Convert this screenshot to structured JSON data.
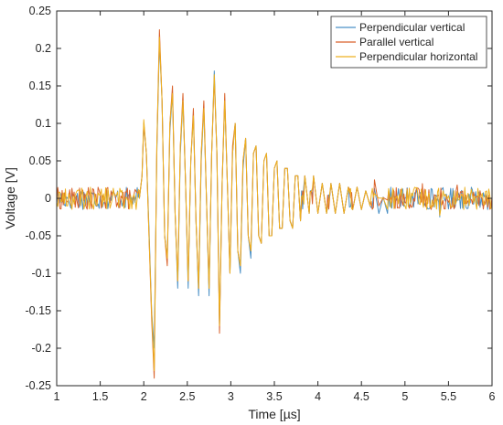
{
  "chart_data": {
    "type": "line",
    "title": "",
    "xlabel": "Time [µs]",
    "ylabel": "Voltage [V]",
    "xlim": [
      1,
      6
    ],
    "ylim": [
      -0.25,
      0.25
    ],
    "xticks": [
      1,
      1.5,
      2,
      2.5,
      3,
      3.5,
      4,
      4.5,
      5,
      5.5,
      6
    ],
    "xtick_labels": [
      "1",
      "1.5",
      "2",
      "2.5",
      "3",
      "3.5",
      "4",
      "4.5",
      "5",
      "5.5",
      "6"
    ],
    "yticks": [
      -0.25,
      -0.2,
      -0.15,
      -0.1,
      -0.05,
      0,
      0.05,
      0.1,
      0.15,
      0.2,
      0.25
    ],
    "ytick_labels": [
      "-0.25",
      "-0.2",
      "-0.15",
      "-0.1",
      "-0.05",
      "0",
      "0.05",
      "0.1",
      "0.15",
      "0.2",
      "0.25"
    ],
    "grid": false,
    "legend_position": "top-right",
    "series": [
      {
        "name": "Perpendicular vertical",
        "color": "#4a90c6",
        "x": [
          1.0,
          1.95,
          1.98,
          2.0,
          2.03,
          2.06,
          2.09,
          2.12,
          2.15,
          2.18,
          2.21,
          2.24,
          2.27,
          2.3,
          2.33,
          2.36,
          2.39,
          2.42,
          2.45,
          2.48,
          2.51,
          2.54,
          2.57,
          2.6,
          2.63,
          2.66,
          2.69,
          2.72,
          2.75,
          2.78,
          2.81,
          2.84,
          2.87,
          2.9,
          2.93,
          2.96,
          2.99,
          3.02,
          3.05,
          3.08,
          3.11,
          3.14,
          3.17,
          3.2,
          3.23,
          3.26,
          3.29,
          3.32,
          3.35,
          3.38,
          3.41,
          3.44,
          3.47,
          3.5,
          3.53,
          3.56,
          3.59,
          3.62,
          3.65,
          3.68,
          3.71,
          3.74,
          3.77,
          3.8,
          3.85,
          3.9,
          3.95,
          4.0,
          4.05,
          4.1,
          4.15,
          4.2,
          4.25,
          4.3,
          4.35,
          4.4,
          4.45,
          4.5,
          4.55,
          4.6,
          4.65,
          4.7,
          4.75,
          4.8,
          4.9,
          5.0,
          5.2,
          5.4,
          5.6,
          5.8,
          6.0
        ],
        "values": [
          0.0,
          0.0,
          0.03,
          0.1,
          0.06,
          -0.04,
          -0.15,
          -0.2,
          0.06,
          0.21,
          0.13,
          -0.05,
          -0.08,
          0.09,
          0.14,
          -0.02,
          -0.12,
          0.06,
          0.13,
          0.02,
          -0.12,
          0.05,
          0.11,
          -0.03,
          -0.13,
          0.05,
          0.12,
          0.0,
          -0.13,
          0.06,
          0.17,
          0.06,
          -0.17,
          0.02,
          0.13,
          0.02,
          -0.1,
          0.06,
          0.1,
          -0.07,
          -0.1,
          0.04,
          0.08,
          -0.05,
          -0.08,
          0.06,
          0.07,
          -0.05,
          -0.06,
          0.05,
          0.06,
          -0.05,
          -0.05,
          0.04,
          0.05,
          -0.04,
          -0.04,
          0.04,
          0.04,
          -0.03,
          -0.04,
          0.03,
          0.03,
          -0.03,
          0.03,
          -0.02,
          0.03,
          -0.02,
          0.02,
          -0.02,
          0.02,
          -0.02,
          0.02,
          -0.02,
          0.015,
          -0.015,
          0.015,
          -0.015,
          0.01,
          -0.01,
          0.01,
          -0.01,
          0.01,
          -0.01,
          0.01,
          -0.01,
          0.01,
          -0.01,
          0.01,
          -0.01,
          0.0
        ]
      },
      {
        "name": "Parallel vertical",
        "color": "#d9622b",
        "x": [
          1.0,
          1.95,
          1.98,
          2.0,
          2.03,
          2.06,
          2.09,
          2.12,
          2.15,
          2.18,
          2.21,
          2.24,
          2.27,
          2.3,
          2.33,
          2.36,
          2.39,
          2.42,
          2.45,
          2.48,
          2.51,
          2.54,
          2.57,
          2.6,
          2.63,
          2.66,
          2.69,
          2.72,
          2.75,
          2.78,
          2.81,
          2.84,
          2.87,
          2.9,
          2.93,
          2.96,
          2.99,
          3.02,
          3.05,
          3.08,
          3.11,
          3.14,
          3.17,
          3.2,
          3.23,
          3.26,
          3.29,
          3.32,
          3.35,
          3.38,
          3.41,
          3.44,
          3.47,
          3.5,
          3.53,
          3.56,
          3.59,
          3.62,
          3.65,
          3.68,
          3.71,
          3.74,
          3.77,
          3.8,
          3.85,
          3.9,
          3.95,
          4.0,
          4.05,
          4.1,
          4.15,
          4.2,
          4.25,
          4.3,
          4.35,
          4.4,
          4.45,
          4.5,
          4.55,
          4.6,
          4.65,
          4.7,
          4.75,
          4.8,
          4.9,
          5.0,
          5.2,
          5.4,
          5.6,
          5.8,
          6.0
        ],
        "values": [
          0.0,
          0.0,
          0.03,
          0.1,
          0.06,
          -0.05,
          -0.16,
          -0.24,
          0.07,
          0.225,
          0.13,
          -0.05,
          -0.09,
          0.1,
          0.15,
          -0.02,
          -0.11,
          0.07,
          0.14,
          0.02,
          -0.11,
          0.05,
          0.12,
          -0.03,
          -0.12,
          0.06,
          0.13,
          0.0,
          -0.12,
          0.06,
          0.16,
          0.06,
          -0.18,
          0.02,
          0.14,
          0.02,
          -0.1,
          0.07,
          0.1,
          -0.07,
          -0.09,
          0.05,
          0.08,
          -0.05,
          -0.07,
          0.06,
          0.07,
          -0.05,
          -0.06,
          0.05,
          0.06,
          -0.05,
          -0.05,
          0.04,
          0.05,
          -0.04,
          -0.04,
          0.04,
          0.04,
          -0.03,
          -0.04,
          0.03,
          0.03,
          -0.03,
          0.03,
          -0.02,
          0.03,
          -0.02,
          0.02,
          -0.02,
          0.02,
          -0.02,
          0.02,
          -0.02,
          0.015,
          -0.015,
          0.015,
          -0.015,
          0.01,
          -0.01,
          0.01,
          -0.01,
          0.01,
          -0.01,
          0.01,
          -0.01,
          0.01,
          -0.01,
          0.01,
          -0.01,
          0.0
        ]
      },
      {
        "name": "Perpendicular horizontal",
        "color": "#edb120",
        "x": [
          1.0,
          1.95,
          1.98,
          2.0,
          2.03,
          2.06,
          2.09,
          2.12,
          2.15,
          2.18,
          2.21,
          2.24,
          2.27,
          2.3,
          2.33,
          2.36,
          2.39,
          2.42,
          2.45,
          2.48,
          2.51,
          2.54,
          2.57,
          2.6,
          2.63,
          2.66,
          2.69,
          2.72,
          2.75,
          2.78,
          2.81,
          2.84,
          2.87,
          2.9,
          2.93,
          2.96,
          2.99,
          3.02,
          3.05,
          3.08,
          3.11,
          3.14,
          3.17,
          3.2,
          3.23,
          3.26,
          3.29,
          3.32,
          3.35,
          3.38,
          3.41,
          3.44,
          3.47,
          3.5,
          3.53,
          3.56,
          3.59,
          3.62,
          3.65,
          3.68,
          3.71,
          3.74,
          3.77,
          3.8,
          3.85,
          3.9,
          3.95,
          4.0,
          4.05,
          4.1,
          4.15,
          4.2,
          4.25,
          4.3,
          4.35,
          4.4,
          4.45,
          4.5,
          4.55,
          4.6,
          4.65,
          4.7,
          4.75,
          4.8,
          4.9,
          5.0,
          5.2,
          5.4,
          5.6,
          5.8,
          6.0
        ],
        "values": [
          0.0,
          0.0,
          0.03,
          0.105,
          0.06,
          -0.05,
          -0.15,
          -0.23,
          0.07,
          0.215,
          0.13,
          -0.05,
          -0.08,
          0.1,
          0.14,
          -0.02,
          -0.11,
          0.07,
          0.13,
          0.02,
          -0.11,
          0.05,
          0.11,
          -0.03,
          -0.12,
          0.06,
          0.12,
          0.0,
          -0.12,
          0.06,
          0.165,
          0.06,
          -0.17,
          0.02,
          0.13,
          0.02,
          -0.1,
          0.06,
          0.1,
          -0.07,
          -0.09,
          0.05,
          0.08,
          -0.05,
          -0.07,
          0.06,
          0.07,
          -0.05,
          -0.06,
          0.05,
          0.06,
          -0.05,
          -0.05,
          0.04,
          0.05,
          -0.04,
          -0.04,
          0.04,
          0.04,
          -0.03,
          -0.04,
          0.03,
          0.03,
          -0.03,
          0.03,
          -0.02,
          0.03,
          -0.02,
          0.02,
          -0.02,
          0.02,
          -0.02,
          0.02,
          -0.02,
          0.015,
          -0.015,
          0.015,
          -0.015,
          0.01,
          -0.01,
          0.01,
          -0.01,
          0.01,
          -0.01,
          0.01,
          -0.01,
          0.01,
          -0.01,
          0.01,
          -0.01,
          0.0
        ]
      }
    ],
    "pre_trigger_noise_amplitude": 0.015
  }
}
